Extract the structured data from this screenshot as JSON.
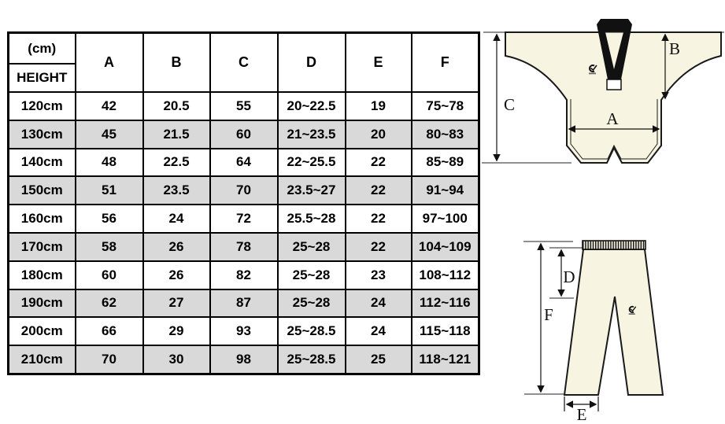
{
  "size_table": {
    "unit_label": "(cm)",
    "height_label": "HEIGHT",
    "columns": [
      "A",
      "B",
      "C",
      "D",
      "E",
      "F"
    ],
    "rows": [
      {
        "height": "120cm",
        "values": [
          "42",
          "20.5",
          "55",
          "20~22.5",
          "19",
          "75~78"
        ]
      },
      {
        "height": "130cm",
        "values": [
          "45",
          "21.5",
          "60",
          "21~23.5",
          "20",
          "80~83"
        ]
      },
      {
        "height": "140cm",
        "values": [
          "48",
          "22.5",
          "64",
          "22~25.5",
          "22",
          "85~89"
        ]
      },
      {
        "height": "150cm",
        "values": [
          "51",
          "23.5",
          "70",
          "23.5~27",
          "22",
          "91~94"
        ]
      },
      {
        "height": "160cm",
        "values": [
          "56",
          "24",
          "72",
          "25.5~28",
          "22",
          "97~100"
        ]
      },
      {
        "height": "170cm",
        "values": [
          "58",
          "26",
          "78",
          "25~28",
          "22",
          "104~109"
        ]
      },
      {
        "height": "180cm",
        "values": [
          "60",
          "26",
          "82",
          "25~28",
          "23",
          "108~112"
        ]
      },
      {
        "height": "190cm",
        "values": [
          "62",
          "27",
          "87",
          "25~28",
          "24",
          "112~116"
        ]
      },
      {
        "height": "200cm",
        "values": [
          "66",
          "29",
          "93",
          "25~28.5",
          "24",
          "115~118"
        ]
      },
      {
        "height": "210cm",
        "values": [
          "70",
          "30",
          "98",
          "25~28.5",
          "25",
          "118~121"
        ]
      }
    ],
    "alt_row_color": "#d9d9d9",
    "border_color": "#000000"
  },
  "jacket_diagram": {
    "label_a": "A",
    "label_b": "B",
    "label_c": "C",
    "fabric_color": "#f7f4e2",
    "collar_color": "#111111",
    "logo_icon": "brand-swoosh-logo"
  },
  "pants_diagram": {
    "label_d": "D",
    "label_e": "E",
    "label_f": "F",
    "fabric_color": "#f7f4e2",
    "waistband_rib_color": "#1a1a1a",
    "logo_icon": "brand-swoosh-logo"
  }
}
